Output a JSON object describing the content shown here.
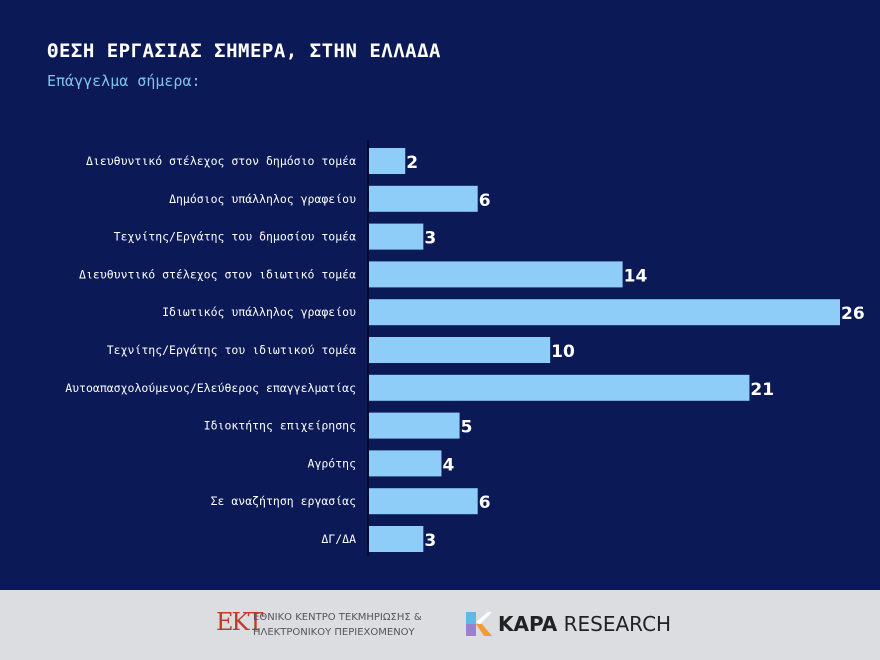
{
  "header": {
    "title": "ΘΕΣΗ ΕΡΓΑΣΙΑΣ ΣΗΜΕΡΑ, ΣΤΗΝ ΕΛΛΑΔΑ",
    "subtitle": "Επάγγελμα σήμερα:"
  },
  "colors": {
    "background": "#0b1a56",
    "bar": "#8ecdf8",
    "footer": "#dcdde0"
  },
  "chart_data": {
    "type": "bar",
    "orientation": "horizontal",
    "categories": [
      "Διευθυντικό στέλεχος στον δημόσιο τομέα",
      "Δημόσιος υπάλληλος γραφείου",
      "Τεχνίτης/Εργάτης του δημοσίου τομέα",
      "Διευθυντικό στέλεχος στον ιδιωτικό τομέα",
      "Ιδιωτικός υπάλληλος γραφείου",
      "Τεχνίτης/Εργάτης του ιδιωτικού τομέα",
      "Αυτοαπασχολούμενος/Ελεύθερος επαγγελματίας",
      "Ιδιοκτήτης επιχείρησης",
      "Αγρότης",
      "Σε αναζήτηση εργασίας",
      "ΔΓ/ΔΑ"
    ],
    "values": [
      2,
      6,
      3,
      14,
      26,
      10,
      21,
      5,
      4,
      6,
      3
    ],
    "xlim": [
      0,
      26
    ],
    "grid": false,
    "data_labels": true
  },
  "footer": {
    "ekt_logo": "ΕΚΤ",
    "ekt_line1": "ΕΘΝΙΚΟ ΚΕΝΤΡΟ ΤΕΚΜΗΡΙΩΣΗΣ &",
    "ekt_line2": "ΗΛΕΚΤΡΟΝΙΚΟΥ ΠΕΡΙΕΧΟΜΕΝΟΥ",
    "kapa_bold": "KAPA",
    "kapa_rest": " RESEARCH"
  }
}
